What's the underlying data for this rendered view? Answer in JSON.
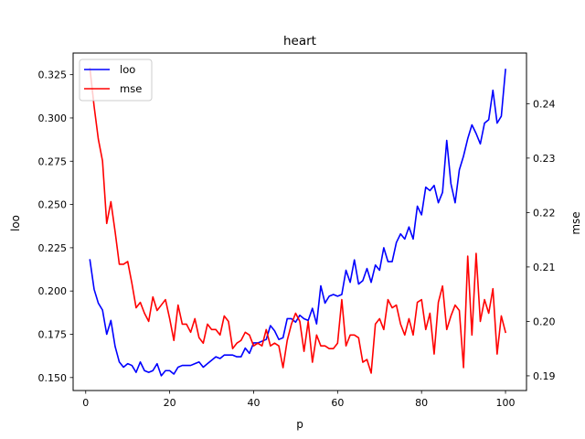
{
  "chart_data": {
    "type": "line",
    "title": "heart",
    "xlabel": "p",
    "ylabel_left": "loo",
    "ylabel_right": "mse",
    "xlim": [
      -3,
      105
    ],
    "ylim_left": [
      0.1425,
      0.3375
    ],
    "ylim_right": [
      0.1873,
      0.2493
    ],
    "xticks": [
      0,
      20,
      40,
      60,
      80,
      100
    ],
    "yticks_left": [
      0.15,
      0.175,
      0.2,
      0.225,
      0.25,
      0.275,
      0.3,
      0.325
    ],
    "yticks_right": [
      0.19,
      0.2,
      0.21,
      0.22,
      0.23,
      0.24
    ],
    "grid": false,
    "legend_position": "upper-left",
    "series": [
      {
        "name": "loo",
        "color": "#0000ff",
        "axis": "left",
        "x": [
          1,
          2,
          3,
          4,
          5,
          6,
          7,
          8,
          9,
          10,
          11,
          12,
          13,
          14,
          15,
          16,
          17,
          18,
          19,
          20,
          21,
          22,
          23,
          24,
          25,
          26,
          27,
          28,
          29,
          30,
          31,
          32,
          33,
          34,
          35,
          36,
          37,
          38,
          39,
          40,
          41,
          42,
          43,
          44,
          45,
          46,
          47,
          48,
          49,
          50,
          51,
          52,
          53,
          54,
          55,
          56,
          57,
          58,
          59,
          60,
          61,
          62,
          63,
          64,
          65,
          66,
          67,
          68,
          69,
          70,
          71,
          72,
          73,
          74,
          75,
          76,
          77,
          78,
          79,
          80,
          81,
          82,
          83,
          84,
          85,
          86,
          87,
          88,
          89,
          90,
          91,
          92,
          93,
          94,
          95,
          96,
          97,
          98,
          99,
          100
        ],
        "values": [
          0.218,
          0.201,
          0.193,
          0.189,
          0.175,
          0.183,
          0.168,
          0.159,
          0.156,
          0.158,
          0.157,
          0.153,
          0.159,
          0.154,
          0.153,
          0.154,
          0.158,
          0.151,
          0.154,
          0.154,
          0.152,
          0.156,
          0.157,
          0.157,
          0.157,
          0.158,
          0.159,
          0.156,
          0.158,
          0.16,
          0.162,
          0.161,
          0.163,
          0.163,
          0.163,
          0.162,
          0.162,
          0.167,
          0.164,
          0.17,
          0.17,
          0.171,
          0.172,
          0.18,
          0.177,
          0.172,
          0.173,
          0.184,
          0.184,
          0.182,
          0.186,
          0.184,
          0.183,
          0.19,
          0.181,
          0.203,
          0.193,
          0.197,
          0.198,
          0.197,
          0.198,
          0.212,
          0.205,
          0.218,
          0.204,
          0.206,
          0.213,
          0.205,
          0.215,
          0.212,
          0.225,
          0.217,
          0.217,
          0.228,
          0.233,
          0.23,
          0.237,
          0.23,
          0.249,
          0.244,
          0.26,
          0.258,
          0.261,
          0.251,
          0.257,
          0.287,
          0.262,
          0.251,
          0.27,
          0.278,
          0.288,
          0.296,
          0.291,
          0.285,
          0.297,
          0.299,
          0.316,
          0.297,
          0.301,
          0.328
        ]
      },
      {
        "name": "mse",
        "color": "#ff0000",
        "axis": "right",
        "x": [
          1,
          2,
          3,
          4,
          5,
          6,
          7,
          8,
          9,
          10,
          11,
          12,
          13,
          14,
          15,
          16,
          17,
          18,
          19,
          20,
          21,
          22,
          23,
          24,
          25,
          26,
          27,
          28,
          29,
          30,
          31,
          32,
          33,
          34,
          35,
          36,
          37,
          38,
          39,
          40,
          41,
          42,
          43,
          44,
          45,
          46,
          47,
          48,
          49,
          50,
          51,
          52,
          53,
          54,
          55,
          56,
          57,
          58,
          59,
          60,
          61,
          62,
          63,
          64,
          65,
          66,
          67,
          68,
          69,
          70,
          71,
          72,
          73,
          74,
          75,
          76,
          77,
          78,
          79,
          80,
          81,
          82,
          83,
          84,
          85,
          86,
          87,
          88,
          89,
          90,
          91,
          92,
          93,
          94,
          95,
          96,
          97,
          98,
          99,
          100
        ],
        "values": [
          0.2465,
          0.2395,
          0.2335,
          0.2295,
          0.218,
          0.222,
          0.2165,
          0.2105,
          0.2105,
          0.211,
          0.207,
          0.2025,
          0.2035,
          0.2015,
          0.2,
          0.2045,
          0.202,
          0.203,
          0.204,
          0.2005,
          0.1965,
          0.203,
          0.1995,
          0.1995,
          0.198,
          0.2005,
          0.197,
          0.196,
          0.1995,
          0.1985,
          0.1985,
          0.1975,
          0.201,
          0.2,
          0.195,
          0.196,
          0.1965,
          0.198,
          0.1975,
          0.1955,
          0.196,
          0.1955,
          0.1985,
          0.1955,
          0.196,
          0.1955,
          0.1915,
          0.1965,
          0.1995,
          0.2015,
          0.2,
          0.1945,
          0.2,
          0.1925,
          0.1975,
          0.1955,
          0.1955,
          0.195,
          0.195,
          0.196,
          0.204,
          0.1955,
          0.1975,
          0.1975,
          0.197,
          0.1925,
          0.193,
          0.1905,
          0.1995,
          0.2005,
          0.1985,
          0.204,
          0.2025,
          0.203,
          0.1995,
          0.1975,
          0.2005,
          0.1975,
          0.2035,
          0.204,
          0.1985,
          0.2015,
          0.194,
          0.2035,
          0.2065,
          0.1985,
          0.201,
          0.203,
          0.202,
          0.1915,
          0.212,
          0.1975,
          0.2125,
          0.2,
          0.204,
          0.2015,
          0.206,
          0.194,
          0.201,
          0.198
        ]
      }
    ]
  }
}
